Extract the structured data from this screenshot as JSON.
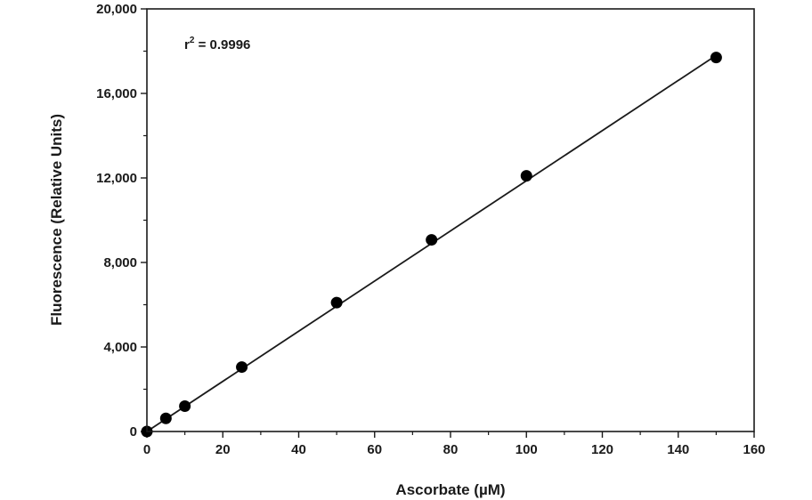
{
  "chart_data": {
    "type": "scatter",
    "title": "",
    "xlabel": "Ascorbate (µM)",
    "ylabel": "Fluorescence (Relative Units)",
    "xlim": [
      0,
      160
    ],
    "ylim": [
      0,
      20000
    ],
    "x_ticks": [
      0,
      20,
      40,
      60,
      80,
      100,
      120,
      140,
      160
    ],
    "x_tick_labels": [
      "0",
      "20",
      "40",
      "60",
      "80",
      "100",
      "120",
      "140",
      "160"
    ],
    "y_ticks": [
      0,
      4000,
      8000,
      12000,
      16000,
      20000
    ],
    "y_tick_labels": [
      "0",
      "4,000",
      "8,000",
      "12,000",
      "16,000",
      "20,000"
    ],
    "grid": false,
    "series": [
      {
        "x": [
          0,
          5,
          10,
          25,
          50,
          75,
          100,
          150
        ],
        "y": [
          0,
          620,
          1200,
          3050,
          6100,
          9070,
          12100,
          17700
        ],
        "color": "#000000"
      }
    ],
    "fit_line": {
      "x": [
        0,
        150
      ],
      "y": [
        0,
        17800
      ],
      "color": "#1a1a1a"
    },
    "annotation": {
      "base": "r",
      "superscript": "2",
      "text": " = 0.9996"
    }
  }
}
